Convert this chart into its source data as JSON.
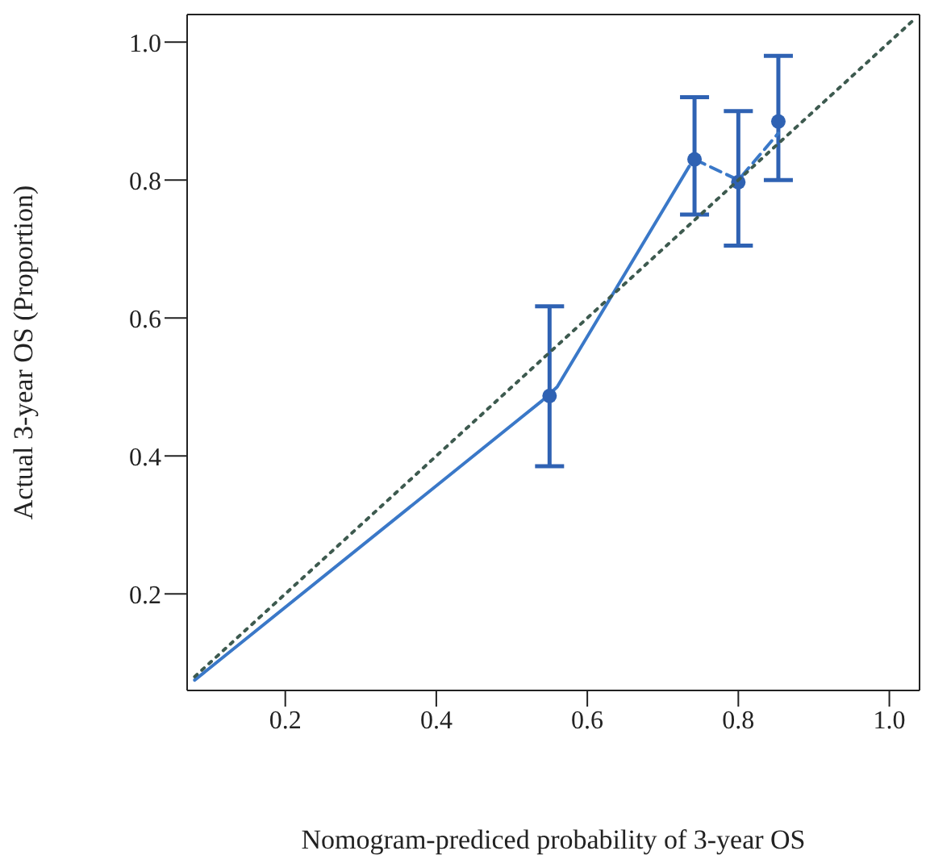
{
  "chart_data": {
    "type": "line",
    "xlabel": "Nomogram-prediced probability of 3-year OS",
    "ylabel": "Actual 3-year OS (Proportion)",
    "xlim": [
      0.07,
      1.04
    ],
    "ylim": [
      0.06,
      1.04
    ],
    "xticks": [
      0.2,
      0.4,
      0.6,
      0.8,
      {
        "value": 1,
        "label": "1.0"
      }
    ],
    "yticks": [
      0.2,
      0.4,
      0.6,
      0.8,
      {
        "value": 1,
        "label": "1.0"
      }
    ],
    "series": [
      {
        "color": "#3a78c8",
        "line_style": "solid",
        "marker": "none",
        "x": [
          0.08,
          0.54,
          0.56,
          0.735
        ],
        "values": [
          0.075,
          0.48,
          0.5,
          0.82
        ]
      },
      {
        "color": "#3a78c8",
        "line_style": "dashed",
        "marker": "none",
        "x": [
          0.742,
          0.8,
          0.853
        ],
        "values": [
          0.83,
          0.8,
          0.868
        ]
      },
      {
        "type": "scatter",
        "color": "#2f62b3",
        "marker": "circle",
        "x": [
          0.55,
          0.742,
          0.8,
          0.853
        ],
        "values": [
          0.487,
          0.83,
          0.797,
          0.885
        ],
        "errors": [
          [
            0.385,
            0.617
          ],
          [
            0.75,
            0.92
          ],
          [
            0.705,
            0.9
          ],
          [
            0.8,
            0.98
          ]
        ]
      },
      {
        "color": "#3d5a4f",
        "line_style": "dotted",
        "marker": "none",
        "x": [
          0.08,
          1.03
        ],
        "values": [
          0.08,
          1.03
        ]
      }
    ]
  }
}
